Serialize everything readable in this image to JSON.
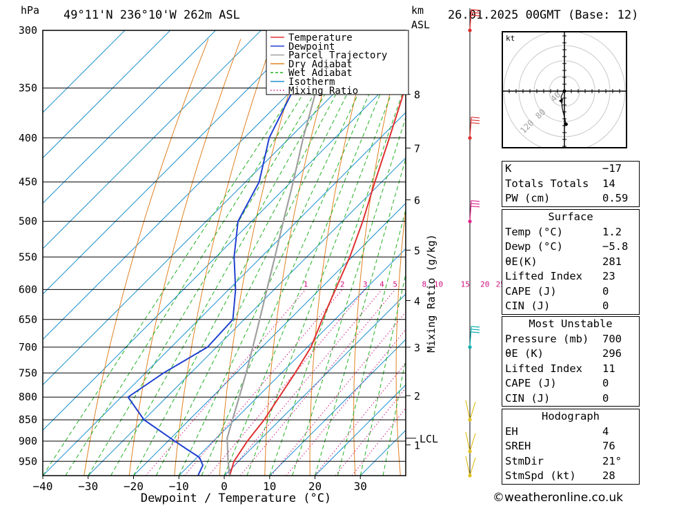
{
  "header": {
    "pressure_unit": "hPa",
    "location": "49°11'N  236°10'W  262m  ASL",
    "height_unit_line1": "km",
    "height_unit_line2": "ASL",
    "datetime": "26.01.2025  00GMT  (Base: 12)"
  },
  "chart_data": {
    "type": "line",
    "title": "",
    "xlabel": "Dewpoint / Temperature (°C)",
    "ylabel": "hPa",
    "right_axis_label": "Mixing Ratio (g/kg)",
    "xlim": [
      -40,
      40
    ],
    "ylim": [
      987,
      300
    ],
    "y_scale": "log",
    "x_ticks": [
      -40,
      -30,
      -20,
      -10,
      0,
      10,
      20,
      30
    ],
    "pressure_levels": [
      300,
      350,
      400,
      450,
      500,
      550,
      600,
      650,
      700,
      750,
      800,
      850,
      900,
      950
    ],
    "km_ticks": [
      {
        "km": 1,
        "p": 909
      },
      {
        "km": 2,
        "p": 797
      },
      {
        "km": 3,
        "p": 700
      },
      {
        "km": 4,
        "p": 618
      },
      {
        "km": 5,
        "p": 540
      },
      {
        "km": 6,
        "p": 472
      },
      {
        "km": 7,
        "p": 411
      },
      {
        "km": 8,
        "p": 356
      }
    ],
    "lcl": {
      "label": "LCL",
      "p": 893
    },
    "mixing_ratio_labels": [
      "1",
      "2",
      "3",
      "4",
      "5",
      "8",
      "10",
      "15",
      "20",
      "25"
    ],
    "legend": [
      {
        "name": "Temperature",
        "color": "#e03030",
        "style": "solid"
      },
      {
        "name": "Dewpoint",
        "color": "#2040d0",
        "style": "solid"
      },
      {
        "name": "Parcel Trajectory",
        "color": "#a0a0a0",
        "style": "solid"
      },
      {
        "name": "Dry Adiabat",
        "color": "#e08020",
        "style": "solid"
      },
      {
        "name": "Wet Adiabat",
        "color": "#20b020",
        "style": "dashed"
      },
      {
        "name": "Isotherm",
        "color": "#2090d0",
        "style": "solid"
      },
      {
        "name": "Mixing Ratio",
        "color": "#d01080",
        "style": "dotted"
      }
    ],
    "legend_position": "top-right",
    "series": [
      {
        "name": "Temperature",
        "color": "#e03030",
        "points": [
          [
            987,
            1.2
          ],
          [
            950,
            -1.0
          ],
          [
            900,
            -2.5
          ],
          [
            850,
            -3.5
          ],
          [
            800,
            -5.2
          ],
          [
            750,
            -7.0
          ],
          [
            700,
            -9.2
          ],
          [
            650,
            -12.8
          ],
          [
            600,
            -16.5
          ],
          [
            550,
            -20.5
          ],
          [
            500,
            -25.5
          ],
          [
            450,
            -31.5
          ],
          [
            400,
            -38.0
          ],
          [
            350,
            -45.5
          ],
          [
            300,
            -53.5
          ]
        ]
      },
      {
        "name": "Dewpoint",
        "color": "#2040d0",
        "points": [
          [
            987,
            -5.8
          ],
          [
            960,
            -7.0
          ],
          [
            940,
            -9.5
          ],
          [
            920,
            -14.0
          ],
          [
            900,
            -18.5
          ],
          [
            850,
            -30.0
          ],
          [
            800,
            -38.5
          ],
          [
            750,
            -36.0
          ],
          [
            700,
            -32.0
          ],
          [
            650,
            -32.5
          ],
          [
            600,
            -38.5
          ],
          [
            550,
            -46.0
          ],
          [
            500,
            -53.0
          ],
          [
            450,
            -57.0
          ],
          [
            400,
            -64.5
          ],
          [
            350,
            -70.0
          ],
          [
            300,
            -76.0
          ]
        ]
      },
      {
        "name": "Parcel Trajectory",
        "color": "#a0a0a0",
        "points": [
          [
            987,
            1.2
          ],
          [
            950,
            -2.3
          ],
          [
            893,
            -7.6
          ],
          [
            850,
            -10.5
          ],
          [
            800,
            -14.0
          ],
          [
            750,
            -17.8
          ],
          [
            700,
            -22.0
          ],
          [
            650,
            -26.6
          ],
          [
            600,
            -31.6
          ],
          [
            550,
            -37.0
          ],
          [
            500,
            -43.0
          ],
          [
            450,
            -49.5
          ],
          [
            400,
            -57.0
          ],
          [
            350,
            -65.0
          ],
          [
            300,
            -74.0
          ]
        ]
      }
    ],
    "wind_barbs": [
      {
        "p": 300,
        "color": "#e03030"
      },
      {
        "p": 400,
        "color": "#e03030"
      },
      {
        "p": 500,
        "color": "#e0208a"
      },
      {
        "p": 700,
        "color": "#10b0b0"
      },
      {
        "p": 850,
        "color": "#e0c020"
      },
      {
        "p": 925,
        "color": "#e0c020"
      },
      {
        "p": 987,
        "color": "#e0c020"
      }
    ],
    "hodograph": {
      "unit": "kt",
      "ring_labels": [
        "40",
        "80",
        "120"
      ],
      "trace": [
        [
          0.6,
          -12
        ],
        [
          -0.8,
          -6
        ],
        [
          -1.2,
          -2
        ],
        [
          -0.2,
          0
        ]
      ]
    }
  },
  "indices": {
    "rows": [
      {
        "label": "K",
        "value": "-17"
      },
      {
        "label": "Totals Totals",
        "value": "14"
      },
      {
        "label": "PW (cm)",
        "value": "0.59"
      }
    ]
  },
  "surface": {
    "title": "Surface",
    "rows": [
      {
        "label": "Temp (°C)",
        "value": "1.2"
      },
      {
        "label": "Dewp (°C)",
        "value": "-5.8"
      },
      {
        "label": "θE(K)",
        "value": "281"
      },
      {
        "label": "Lifted Index",
        "value": "23"
      },
      {
        "label": "CAPE (J)",
        "value": "0"
      },
      {
        "label": "CIN (J)",
        "value": "0"
      }
    ]
  },
  "most_unstable": {
    "title": "Most Unstable",
    "rows": [
      {
        "label": "Pressure (mb)",
        "value": "700"
      },
      {
        "label": "θE (K)",
        "value": "296"
      },
      {
        "label": "Lifted Index",
        "value": "11"
      },
      {
        "label": "CAPE (J)",
        "value": "0"
      },
      {
        "label": "CIN (J)",
        "value": "0"
      }
    ]
  },
  "hodograph_table": {
    "title": "Hodograph",
    "rows": [
      {
        "label": "EH",
        "value": "4"
      },
      {
        "label": "SREH",
        "value": "76"
      },
      {
        "label": "StmDir",
        "value": "21°"
      },
      {
        "label": "StmSpd (kt)",
        "value": "28"
      }
    ]
  },
  "copyright": "©weatheronline.co.uk"
}
